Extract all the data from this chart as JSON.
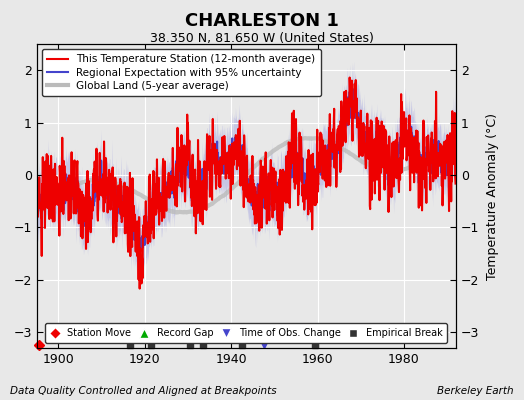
{
  "title": "CHARLESTON 1",
  "subtitle": "38.350 N, 81.650 W (United States)",
  "ylabel": "Temperature Anomaly (°C)",
  "footer_left": "Data Quality Controlled and Aligned at Breakpoints",
  "footer_right": "Berkeley Earth",
  "xlim": [
    1895,
    1992
  ],
  "ylim": [
    -3.3,
    2.5
  ],
  "yticks": [
    -3,
    -2,
    -1,
    0,
    1,
    2
  ],
  "xticks": [
    1900,
    1920,
    1940,
    1960,
    1980
  ],
  "legend_items": [
    {
      "label": "This Temperature Station (12-month average)",
      "color": "#ee0000",
      "lw": 1.5
    },
    {
      "label": "Regional Expectation with 95% uncertainty",
      "color": "#4444cc",
      "lw": 1.5
    },
    {
      "label": "Global Land (5-year average)",
      "color": "#bbbbbb",
      "lw": 3
    }
  ],
  "marker_legend": [
    {
      "marker": "D",
      "color": "#ee0000",
      "label": "Station Move"
    },
    {
      "marker": "^",
      "color": "#00aa00",
      "label": "Record Gap"
    },
    {
      "marker": "v",
      "color": "#4444cc",
      "label": "Time of Obs. Change"
    },
    {
      "marker": "s",
      "color": "#333333",
      "label": "Empirical Break"
    }
  ],
  "station_moves": [
    1895.5
  ],
  "record_gaps": [],
  "obs_changes": [
    1942.5,
    1947.5,
    1959.5
  ],
  "emp_breaks": [
    1916.5,
    1921.5,
    1930.5,
    1933.5,
    1942.5,
    1959.5
  ],
  "background_color": "#e8e8e8",
  "plot_bg": "#e8e8e8",
  "grid_color": "#ffffff",
  "seed": 42
}
